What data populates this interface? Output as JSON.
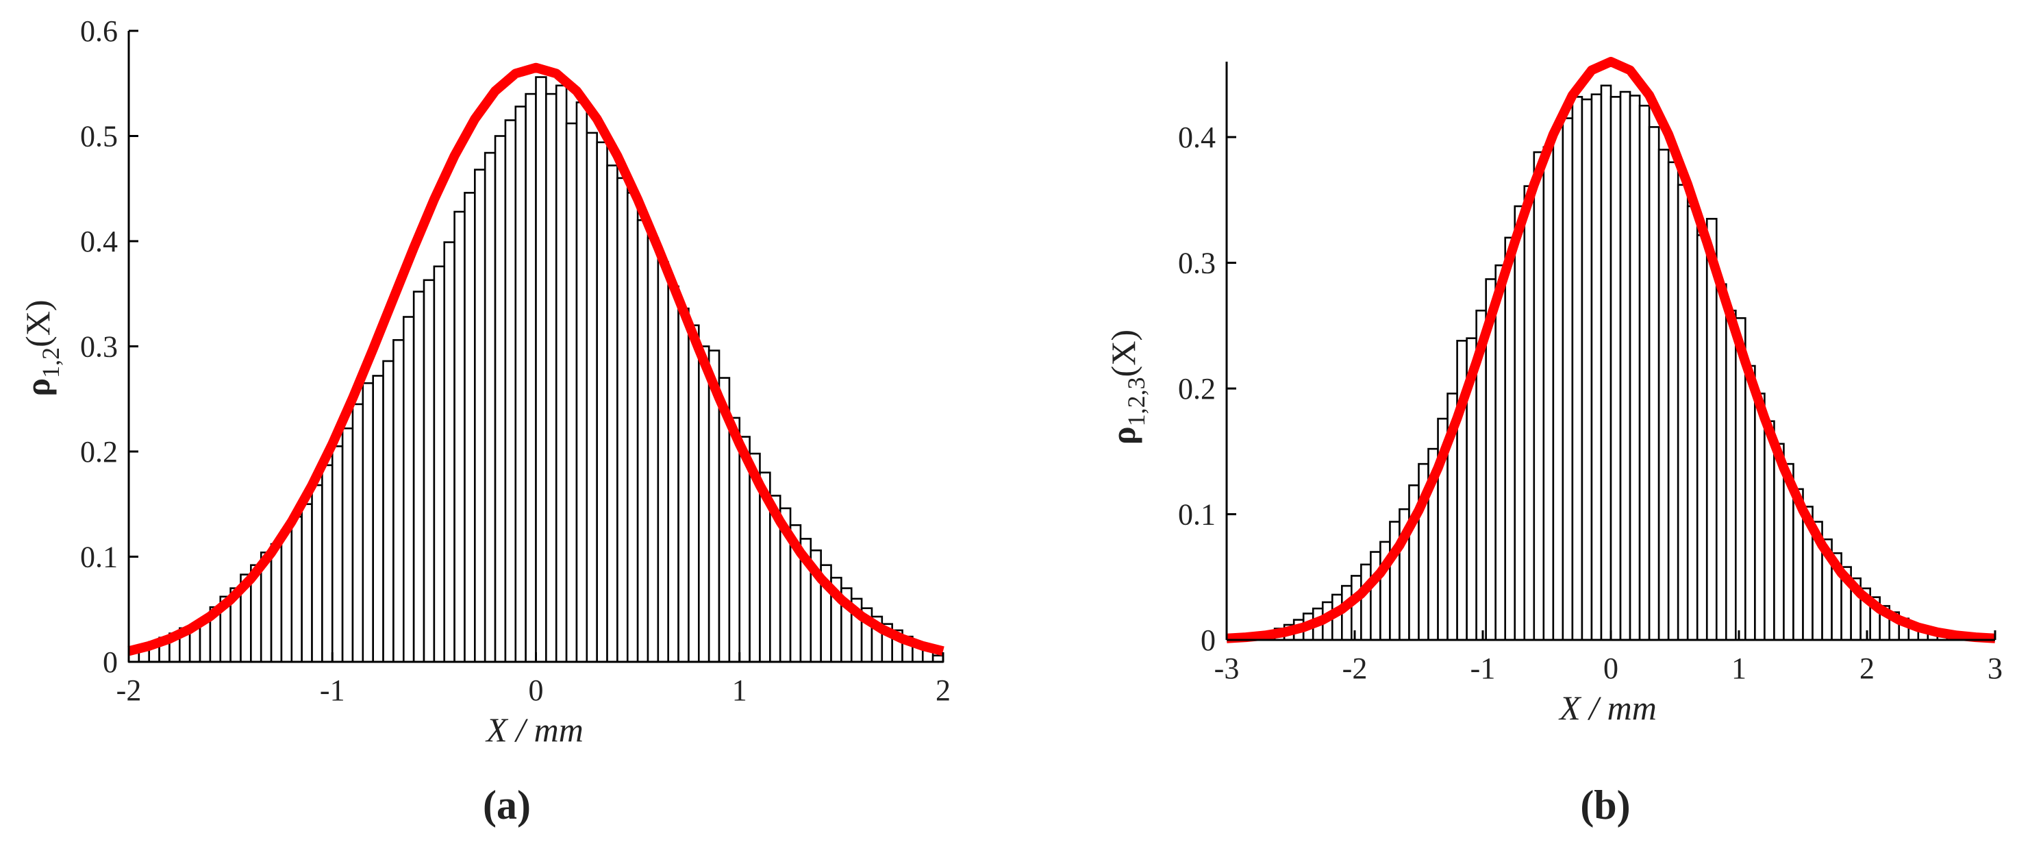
{
  "chart_data": [
    {
      "type": "histogram",
      "panel_label": "(a)",
      "xlabel": "X / mm",
      "ylabel": {
        "symbol": "ρ",
        "subscript": "1,2",
        "suffix": "(X)"
      },
      "bins": [
        -2,
        -1.95,
        -1.9,
        -1.85,
        -1.8,
        -1.75,
        -1.7,
        -1.65,
        -1.6,
        -1.55,
        -1.5,
        -1.45,
        -1.4,
        -1.35,
        -1.3,
        -1.25,
        -1.2,
        -1.15,
        -1.1,
        -1.05,
        -1,
        -0.95,
        -0.9,
        -0.85,
        -0.8,
        -0.75,
        -0.7,
        -0.65,
        -0.6,
        -0.55,
        -0.5,
        -0.45,
        -0.4,
        -0.35,
        -0.3,
        -0.25,
        -0.2,
        -0.15,
        -0.1,
        -0.05,
        0,
        0.05,
        0.1,
        0.15,
        0.2,
        0.25,
        0.3,
        0.35,
        0.4,
        0.45,
        0.5,
        0.55,
        0.6,
        0.65,
        0.7,
        0.75,
        0.8,
        0.85,
        0.9,
        0.95,
        1,
        1.05,
        1.1,
        1.15,
        1.2,
        1.25,
        1.3,
        1.35,
        1.4,
        1.45,
        1.5,
        1.55,
        1.6,
        1.65,
        1.7,
        1.75,
        1.8,
        1.85,
        1.9,
        1.95,
        2
      ],
      "counts": [
        0.012,
        0.016,
        0.019,
        0.023,
        0.027,
        0.032,
        0.035,
        0.04,
        0.052,
        0.062,
        0.07,
        0.083,
        0.092,
        0.104,
        0.112,
        0.125,
        0.138,
        0.15,
        0.168,
        0.187,
        0.205,
        0.222,
        0.245,
        0.265,
        0.272,
        0.286,
        0.306,
        0.328,
        0.352,
        0.363,
        0.376,
        0.399,
        0.428,
        0.446,
        0.468,
        0.484,
        0.5,
        0.515,
        0.528,
        0.54,
        0.556,
        0.54,
        0.548,
        0.512,
        0.532,
        0.503,
        0.494,
        0.472,
        0.46,
        0.446,
        0.42,
        0.403,
        0.38,
        0.357,
        0.336,
        0.32,
        0.3,
        0.296,
        0.27,
        0.232,
        0.214,
        0.198,
        0.18,
        0.158,
        0.146,
        0.13,
        0.117,
        0.106,
        0.092,
        0.08,
        0.07,
        0.06,
        0.051,
        0.043,
        0.036,
        0.03,
        0.024,
        0.017,
        0.011,
        0.006
      ],
      "color": "#ffffff",
      "edgecolor": "#000000",
      "fit": {
        "color": "#ff0000",
        "x": [
          -2,
          -1.9,
          -1.8,
          -1.7,
          -1.6,
          -1.5,
          -1.4,
          -1.3,
          -1.2,
          -1.1,
          -1,
          -0.9,
          -0.8,
          -0.7,
          -0.6,
          -0.5,
          -0.4,
          -0.3,
          -0.2,
          -0.1,
          0,
          0.1,
          0.2,
          0.3,
          0.4,
          0.5,
          0.6,
          0.7,
          0.8,
          0.9,
          1,
          1.1,
          1.2,
          1.3,
          1.4,
          1.5,
          1.6,
          1.7,
          1.8,
          1.9,
          2
        ],
        "values": [
          0.0102,
          0.0151,
          0.0219,
          0.0311,
          0.0433,
          0.0591,
          0.0791,
          0.1037,
          0.1333,
          0.1679,
          0.2072,
          0.2508,
          0.2974,
          0.3456,
          0.3937,
          0.4397,
          0.4812,
          0.5162,
          0.5428,
          0.5594,
          0.565,
          0.5594,
          0.5428,
          0.5162,
          0.4812,
          0.4397,
          0.3937,
          0.3456,
          0.2974,
          0.2508,
          0.2072,
          0.1679,
          0.1333,
          0.1037,
          0.0791,
          0.0591,
          0.0433,
          0.0311,
          0.0219,
          0.0151,
          0.0102
        ]
      },
      "xlim": [
        -2,
        2
      ],
      "xticks": [
        -2,
        -1,
        0,
        1,
        2
      ],
      "ylim": [
        0,
        0.6
      ],
      "yticks": [
        0,
        0.1,
        0.2,
        0.3,
        0.4,
        0.5,
        0.6
      ]
    },
    {
      "type": "histogram",
      "panel_label": "(b)",
      "xlabel": "X / mm",
      "ylabel": {
        "symbol": "ρ",
        "subscript": "1,2,3",
        "suffix": "(X)"
      },
      "bins": [
        -3,
        -2.925,
        -2.85,
        -2.775,
        -2.7,
        -2.625,
        -2.55,
        -2.475,
        -2.4,
        -2.325,
        -2.25,
        -2.175,
        -2.1,
        -2.025,
        -1.95,
        -1.875,
        -1.8,
        -1.725,
        -1.65,
        -1.575,
        -1.5,
        -1.425,
        -1.35,
        -1.275,
        -1.2,
        -1.125,
        -1.05,
        -0.975,
        -0.9,
        -0.825,
        -0.75,
        -0.675,
        -0.6,
        -0.525,
        -0.45,
        -0.375,
        -0.3,
        -0.225,
        -0.15,
        -0.075,
        0,
        0.075,
        0.15,
        0.225,
        0.3,
        0.375,
        0.45,
        0.525,
        0.6,
        0.675,
        0.75,
        0.825,
        0.9,
        0.975,
        1.05,
        1.125,
        1.2,
        1.275,
        1.35,
        1.425,
        1.5,
        1.575,
        1.65,
        1.725,
        1.8,
        1.875,
        1.95,
        2.025,
        2.1,
        2.175,
        2.25,
        2.325,
        2.4,
        2.475,
        2.55,
        2.625,
        2.7,
        2.775,
        2.85,
        2.925,
        3
      ],
      "counts": [
        0,
        0,
        0,
        0,
        0.006,
        0.009,
        0.012,
        0.016,
        0.021,
        0.025,
        0.03,
        0.036,
        0.043,
        0.051,
        0.06,
        0.07,
        0.078,
        0.094,
        0.104,
        0.123,
        0.14,
        0.152,
        0.176,
        0.196,
        0.238,
        0.24,
        0.262,
        0.287,
        0.298,
        0.32,
        0.345,
        0.361,
        0.388,
        0.392,
        0.408,
        0.415,
        0.432,
        0.43,
        0.434,
        0.441,
        0.432,
        0.436,
        0.433,
        0.425,
        0.408,
        0.39,
        0.38,
        0.362,
        0.345,
        0.322,
        0.335,
        0.283,
        0.262,
        0.256,
        0.218,
        0.196,
        0.174,
        0.156,
        0.14,
        0.12,
        0.106,
        0.094,
        0.08,
        0.069,
        0.058,
        0.049,
        0.041,
        0.034,
        0.027,
        0.022,
        0.017,
        0.013,
        0.01,
        0.007,
        0.005,
        0,
        0,
        0,
        0,
        0
      ],
      "color": "#ffffff",
      "edgecolor": "#000000",
      "fit": {
        "color": "#ff0000",
        "x": [
          -3,
          -2.85,
          -2.7,
          -2.55,
          -2.4,
          -2.25,
          -2.1,
          -1.95,
          -1.8,
          -1.65,
          -1.5,
          -1.35,
          -1.2,
          -1.05,
          -0.9,
          -0.75,
          -0.6,
          -0.45,
          -0.3,
          -0.15,
          0,
          0.15,
          0.3,
          0.45,
          0.6,
          0.75,
          0.9,
          1.05,
          1.2,
          1.35,
          1.5,
          1.65,
          1.8,
          1.95,
          2.1,
          2.25,
          2.4,
          2.55,
          2.7,
          2.85,
          3
        ],
        "values": [
          0.0012,
          0.0021,
          0.0036,
          0.0061,
          0.01,
          0.0159,
          0.0245,
          0.0367,
          0.0533,
          0.0752,
          0.103,
          0.1368,
          0.1765,
          0.221,
          0.2684,
          0.3165,
          0.3622,
          0.4021,
          0.4333,
          0.4532,
          0.46,
          0.4532,
          0.4333,
          0.4021,
          0.3622,
          0.3165,
          0.2684,
          0.221,
          0.1765,
          0.1368,
          0.103,
          0.0752,
          0.0533,
          0.0367,
          0.0245,
          0.0159,
          0.01,
          0.0061,
          0.0036,
          0.0021,
          0.0012
        ]
      },
      "xlim": [
        -3,
        3
      ],
      "xticks": [
        -3,
        -2,
        -1,
        0,
        1,
        2,
        3
      ],
      "ylim": [
        0,
        0.46
      ],
      "yticks": [
        0,
        0.1,
        0.2,
        0.3,
        0.4
      ]
    }
  ]
}
